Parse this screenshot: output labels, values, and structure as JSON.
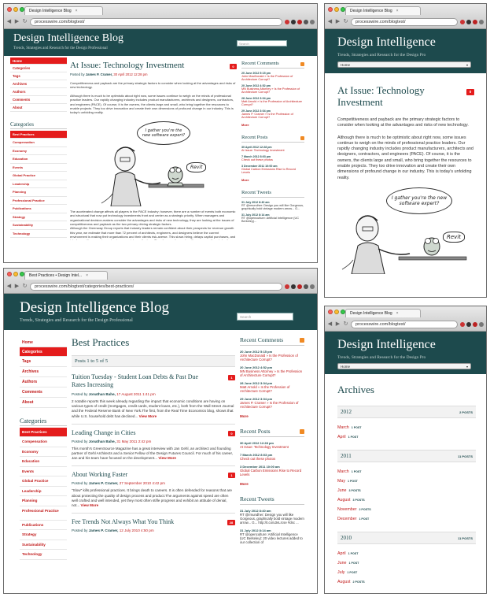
{
  "common": {
    "blog_title": "Design Intelligence Blog",
    "blog_title_short": "Design Intelligence",
    "tagline": "Trends, Strategies and Research for the Design Professional",
    "tagline_short": "Trends, Strategies and Research for the Design Pro",
    "search_placeholder": "Search",
    "home_select": "Home",
    "colors": {
      "banner": "#1d4a4d",
      "accent": "#e41c1c",
      "link": "#c01818"
    }
  },
  "win1": {
    "tab": "Design Intelligence Blog",
    "url": "processwire.com/blogtest/",
    "nav": [
      "Home",
      "Categories",
      "Tags",
      "Archives",
      "Authors",
      "Comments",
      "About"
    ],
    "categories_heading": "Categories",
    "categories": [
      "Best Practices",
      "Compensation",
      "Economy",
      "Education",
      "Events",
      "Global Practice",
      "Leadership",
      "Planning",
      "Professional Practice",
      "Publications",
      "Strategy",
      "Sustainability",
      "Technology"
    ],
    "post": {
      "title": "At Issue: Technology Investment",
      "posted_by": "Posted by",
      "author": "James P. Cramer,",
      "date": "30 April 2012 12:28 pm",
      "comments": "0",
      "p1": "Competitiveness and payback are the primary strategic factors to consider when looking at the advantages and risks of new technology.",
      "p2": "Although there is much to be optimistic about right now, some issues continue to weigh on the minds of professional practice leaders. Our rapidly changing industry includes product manufacturers, architects and designers, contractors, and engineers (PACE). Of course, it is the owners, the clients large and small, who bring together the resources to enable projects. They too drive innovation and create their own dimensions of profound change in our industry. This is today's unfolding reality.",
      "p3": "The accelerated change affects all players in the PACE industry; however, there are a number of events both economic and structural that now put technology investments front and center as a strategic priority. When managers and organizational decision-makers consider the advantages and risks of new technology, they are looking at the issues of competitiveness and payback as the two primary driving strategic factors.",
      "p4": "Although the Greenway Group reports that industry leaders remain confident about their prospects for revenue growth this year, we estimate that more than 72 percent of architects, engineers, and designers believe the current environment is making their organizations and their clients risk-averse. This slows hiring, delays capital purchases, and interferes with aggressive and entrepreneurial growth plans. Therefore, caution and resiliency are on the minds of leaders. And because of this, we've"
    },
    "cartoon": {
      "bubble": "I gather you're the new software expert?",
      "label": "Revit"
    },
    "recent_comments_heading": "Recent Comments",
    "recent_comments": [
      {
        "date": "20 June 2012 5:15 pm",
        "text": "John MacDonald » Is the Profession of Architecture Corrupt?"
      },
      {
        "date": "20 June 2012 4:52 pm",
        "text": "MN Business Attorney » Is the Profession of Architecture Corrupt?"
      },
      {
        "date": "28 June 2012 3:04 pm",
        "text": "Matt Arnold » Is the Profession of Architecture Corrupt?"
      },
      {
        "date": "29 June 2012 3:04 pm",
        "text": "James P. Cramer » Is the Profession of Architecture Corrupt?"
      }
    ],
    "recent_posts_heading": "Recent Posts",
    "recent_posts": [
      {
        "date": "30 April 2012 12:28 pm",
        "text": "At Issue: Technology Investment"
      },
      {
        "date": "7 March 2012 8:03 pm",
        "text": "Check out these photos"
      },
      {
        "date": "3 December 2011 10:00 am",
        "text": "Global Carbon Emissions Rise to Record Levels"
      }
    ],
    "recent_tweets_heading": "Recent Tweets",
    "recent_tweets": [
      {
        "date": "31 July 2012 8:40 am",
        "text": "RT @rmundher: Design you will like Gorgeous, graphically bold vintage modern arrow... G..."
      },
      {
        "date": "31 July 2012 8:14 am",
        "text": "RT @openculture: Artificial Intelligence (UC Berkeley)..."
      }
    ],
    "more": "More"
  },
  "win2": {
    "tab": "Design Intelligence Blog",
    "url": "processwire.com/blogtest/",
    "post_title": "At Issue: Technology Investment",
    "badge": "0",
    "p1": "Competitiveness and payback are the primary strategic factors to consider when looking at the advantages and risks of new technology.",
    "p2": "Although there is much to be optimistic about right now, some issues continue to weigh on the minds of professional practice leaders. Our rapidly changing industry includes product manufacturers, architects and designers, contractors, and engineers (PACE). Of course, it is the owners, the clients large and small, who bring together the resources to enable projects. They too drive innovation and create their own dimensions of profound change in our industry. This is today's unfolding reality."
  },
  "win3": {
    "tab": "Best Practices • Design Intel...",
    "url": "processwire.com/blogtest/categories/best-practices/",
    "nav": [
      "Home",
      "Categories",
      "Tags",
      "Archives",
      "Authors",
      "Comments",
      "About"
    ],
    "categories_heading": "Categories",
    "categories": [
      "Best Practices",
      "Compensation",
      "Economy",
      "Education",
      "Events",
      "Global Practice",
      "Leadership",
      "Planning",
      "Professional Practice",
      "Publications",
      "Strategy",
      "Sustainability",
      "Technology"
    ],
    "page_title": "Best Practices",
    "posts_count": "Posts 1 to 5 of 5",
    "posts": [
      {
        "title": "Tuition Tuesday - Student Loan Debts & Past Due Rates Increasing",
        "author": "Jonathan Bahe,",
        "date": "17 August 2011 1:41 pm",
        "badge": "1",
        "excerpt": "2 notable reports this week already regarding the impact that economic conditions are having on various types of credit (mortgages, credit cards, student loans, etc.), both from the Wall Street Journal and the Federal Reserve Bank of New York.The first, from the Real Time Economics blog, shows that while U.S. household debt has declined..."
      },
      {
        "title": "Leading Change in Cities",
        "author": "Jonathan Bahe,",
        "date": "31 May 2011 2:42 pm",
        "badge": "0",
        "excerpt": "This month's GreenSource Magazine has a great interview with Jan Gehl, an architect and founding partner of Gehl Architects and a Senior Fellow of the Design Futures Council. For much of his career, Jan and his team have focused on the development..."
      },
      {
        "title": "About Working Faster",
        "author": "James P. Cramer,",
        "date": "27 September 2010 4:42 pm",
        "badge": "1",
        "excerpt": "\"Slow\" kills professional practices. It brings death to careers. It is often defended for reasons that are about protecting the quality of design process and product.The arguments against speed are often well crafted and well intended, yet they most often stifle progress and exhibit an attitude of denial, not..."
      },
      {
        "title": "Fee Trends Not Always What You Think",
        "author": "James P. Cramer,",
        "date": "12 July 2010 4:50 pm",
        "badge": "28",
        "excerpt": ""
      }
    ],
    "posted_by": "Posted by",
    "view_more": "View More",
    "recent_comments_heading": "Recent Comments",
    "recent_comments": [
      {
        "date": "20 June 2012 5:15 pm",
        "text": "John MacDonald » Is the Profession of Architecture Corrupt?"
      },
      {
        "date": "20 June 2012 4:52 pm",
        "text": "MN Business Attorney » Is the Profession of Architecture Corrupt?"
      },
      {
        "date": "28 June 2012 3:04 pm",
        "text": "Matt Arnold » Is the Profession of Architecture Corrupt?"
      },
      {
        "date": "29 June 2012 3:04 pm",
        "text": "James P. Cramer » Is the Profession of Architecture Corrupt?"
      }
    ],
    "recent_posts_heading": "Recent Posts",
    "recent_posts": [
      {
        "date": "30 April 2012 12:28 pm",
        "text": "At Issue: Technology Investment"
      },
      {
        "date": "7 March 2012 8:03 pm",
        "text": "Check out these photos"
      },
      {
        "date": "3 December 2011 10:00 am",
        "text": "Global Carbon Emissions Rise to Record Levels"
      }
    ],
    "recent_tweets_heading": "Recent Tweets",
    "recent_tweets": [
      {
        "date": "31 July 2012 8:40 am",
        "text": "RT @rmundher: Design you will like Gorgeous, graphically bold vintage modern arrow... G... http://t.co/u3vLrcse #dsc ..."
      },
      {
        "date": "31 July 2012 8:14 am",
        "text": "RT @openculture: Artificial Intelligence (UC Berkeley): 20 video lectures added to our collection of"
      }
    ],
    "more": "More"
  },
  "win4": {
    "tab": "Design Intelligence Blog",
    "url": "processwire.com/blogtest/",
    "page_title": "Archives",
    "years": [
      {
        "year": "2012",
        "count": "2 POSTS",
        "months": [
          {
            "m": "March",
            "n": "1 POST"
          },
          {
            "m": "April",
            "n": "1 POST"
          }
        ]
      },
      {
        "year": "2011",
        "count": "11 POSTS",
        "months": [
          {
            "m": "March",
            "n": "1 POST"
          },
          {
            "m": "May",
            "n": "1 POST"
          },
          {
            "m": "June",
            "n": "3 POSTS"
          },
          {
            "m": "August",
            "n": "3 POSTS"
          },
          {
            "m": "November",
            "n": "2 POSTS"
          },
          {
            "m": "December",
            "n": "1 POST"
          }
        ]
      },
      {
        "year": "2010",
        "count": "11 POSTS",
        "months": [
          {
            "m": "April",
            "n": "1 POST"
          },
          {
            "m": "June",
            "n": "1 POST"
          },
          {
            "m": "July",
            "n": "1 POST"
          },
          {
            "m": "August",
            "n": "2 POSTS"
          }
        ]
      }
    ]
  }
}
